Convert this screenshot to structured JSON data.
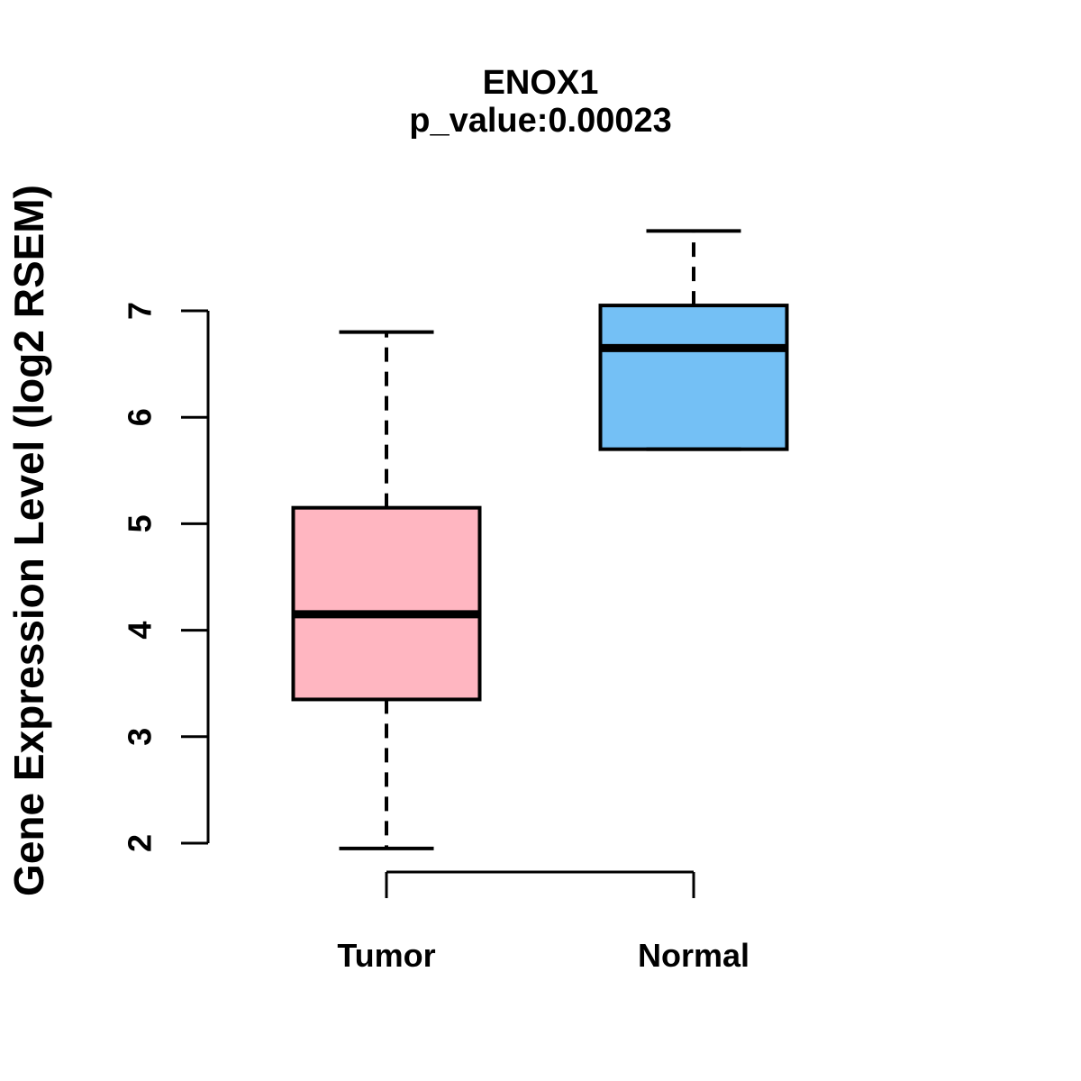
{
  "chart_data": {
    "type": "boxplot",
    "title": "ENOX1",
    "subtitle": "p_value:0.00023",
    "ylabel": "Gene Expression Level (log2 RSEM)",
    "xlabel": "",
    "yticks": [
      2,
      3,
      4,
      5,
      6,
      7
    ],
    "ylim": [
      1.95,
      7.75
    ],
    "grid": false,
    "legend": "none",
    "categories": [
      "Tumor",
      "Normal"
    ],
    "series": [
      {
        "name": "Tumor",
        "color": "#FFB6C1",
        "whisker_low": 1.95,
        "q1": 3.35,
        "median": 4.15,
        "q3": 5.15,
        "whisker_high": 6.8
      },
      {
        "name": "Normal",
        "color": "#74C0F5",
        "whisker_low": 5.7,
        "q1": 5.7,
        "median": 6.65,
        "q3": 7.05,
        "whisker_high": 7.75
      }
    ],
    "colors": {
      "stroke": "#000000",
      "background": "#ffffff"
    }
  }
}
